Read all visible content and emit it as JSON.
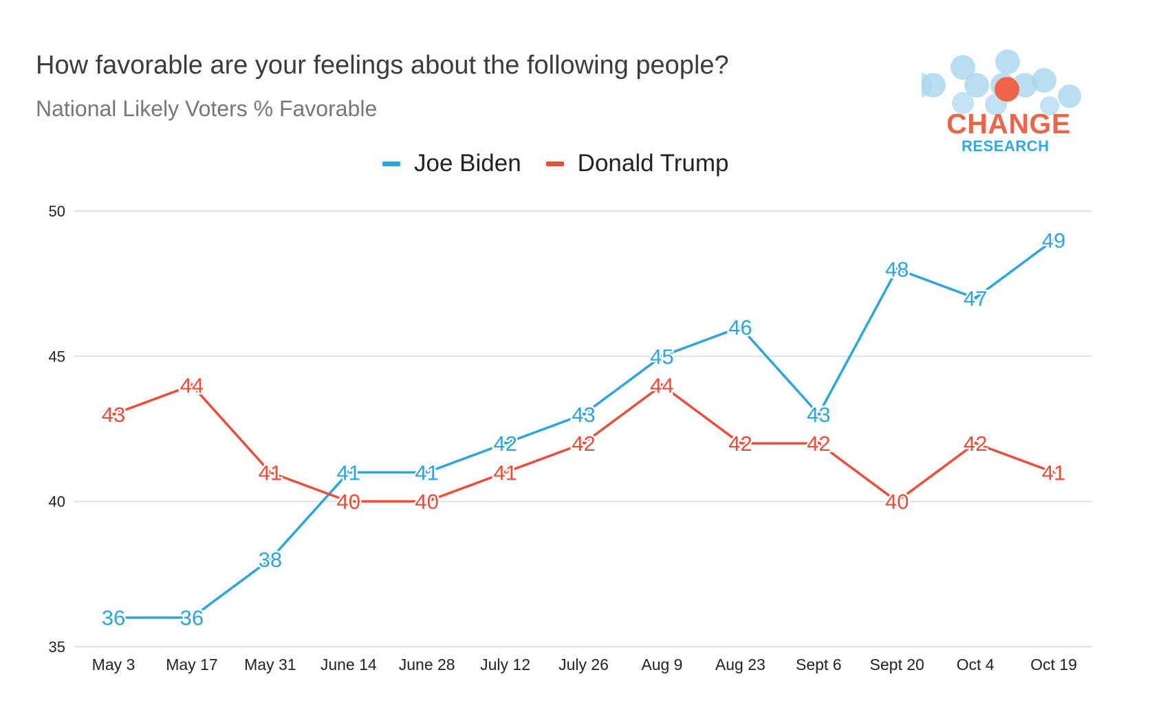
{
  "header": {
    "title": "How favorable are your feelings about the following people?",
    "subtitle": "National Likely Voters % Favorable"
  },
  "logo": {
    "word": "CHANGE",
    "sub": "RESEARCH"
  },
  "colors": {
    "biden": "#2ea4dc",
    "trump": "#ea4e3a",
    "grid": "#d6d6d6",
    "axis_text": "#222222",
    "logo_red": "#ee6448",
    "logo_blue": "#31a8de"
  },
  "chart_data": {
    "type": "line",
    "title": "How favorable are your feelings about the following people?",
    "subtitle": "National Likely Voters % Favorable",
    "xlabel": "",
    "ylabel": "",
    "categories": [
      "May 3",
      "May 17",
      "May 31",
      "June 14",
      "June 28",
      "July 12",
      "July 26",
      "Aug 9",
      "Aug 23",
      "Sept 6",
      "Sept 20",
      "Oct 4",
      "Oct 19"
    ],
    "series": [
      {
        "name": "Joe Biden",
        "color": "#2ea4dc",
        "values": [
          36,
          36,
          38,
          41,
          41,
          42,
          43,
          45,
          46,
          43,
          48,
          47,
          49
        ]
      },
      {
        "name": "Donald Trump",
        "color": "#ea4e3a",
        "values": [
          43,
          44,
          41,
          40,
          40,
          41,
          42,
          44,
          42,
          42,
          40,
          42,
          41
        ]
      }
    ],
    "ylim": [
      35,
      50
    ],
    "yticks": [
      35,
      40,
      45,
      50
    ],
    "grid": true,
    "legend_position": "top-center",
    "data_labels": true
  }
}
